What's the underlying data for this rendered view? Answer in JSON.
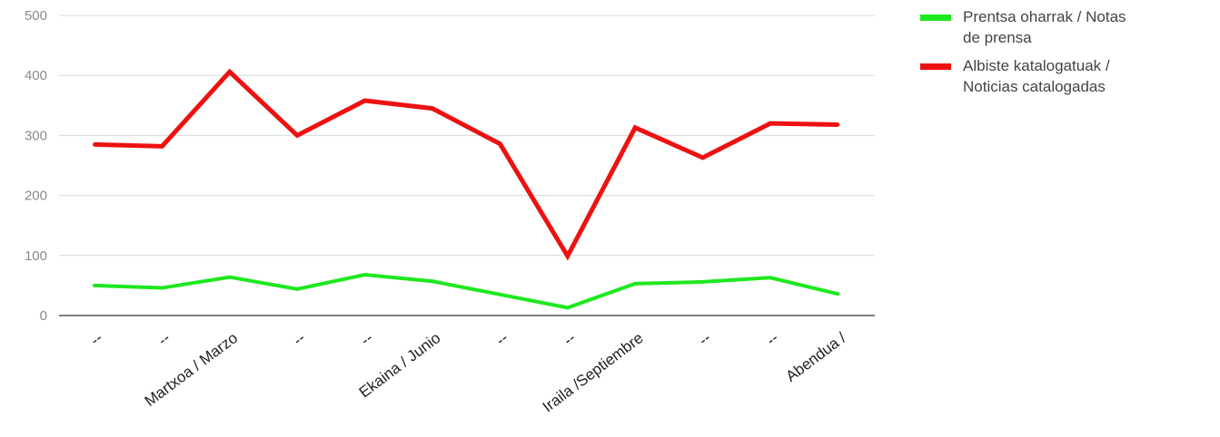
{
  "chart_data": {
    "type": "line",
    "categories": [
      "--",
      "--",
      "Martxoa / Marzo",
      "--",
      "--",
      "Ekaina / Junio",
      "--",
      "--",
      "Iraila /Septiembre",
      "--",
      "--",
      "Abendua /"
    ],
    "series": [
      {
        "name": "Prentsa oharrak / Notas de prensa",
        "legend_lines": [
          "Prentsa oharrak / Notas",
          "de prensa"
        ],
        "color": "#1ee81e",
        "values": [
          50,
          46,
          64,
          44,
          68,
          57,
          35,
          13,
          53,
          56,
          63,
          36
        ]
      },
      {
        "name": "Albiste katalogatuak / Noticias catalogadas",
        "legend_lines": [
          "Albiste katalogatuak /",
          "Noticias catalogadas"
        ],
        "color": "#ee1111",
        "values": [
          285,
          282,
          406,
          300,
          358,
          345,
          286,
          99,
          313,
          263,
          320,
          318
        ]
      }
    ],
    "yticks": [
      "0",
      "100",
      "200",
      "300",
      "400",
      "500"
    ],
    "ylim": [
      0,
      500
    ],
    "grid": true,
    "legend_position": "top-right"
  }
}
